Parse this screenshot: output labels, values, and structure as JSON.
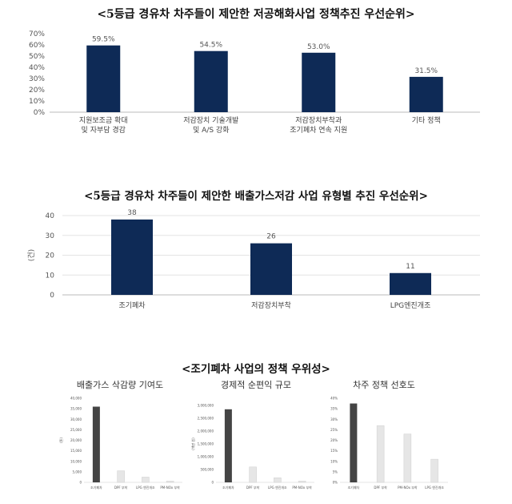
{
  "sections": {
    "top_title": "<5등급 경유차 차주들이 제안한 저공해화사업 정책추진 우선순위>",
    "mid_title": "<5등급 경유차 차주들이 제안한 배출가스저감 사업 유형별 추진 우선순위>",
    "bottom_title": "<조기폐차 사업의 정책 우위성>"
  },
  "colors": {
    "navy": "#0e2a56",
    "dark_gray": "#444444",
    "light_gray": "#e6e6e6"
  },
  "chart_data": [
    {
      "type": "bar",
      "title": "",
      "categories": [
        [
          "지원보조금 확대",
          "및 자부담 경감"
        ],
        [
          "저감장치 기술개발",
          "및 A/S 강화"
        ],
        [
          "저감장치부착과",
          "조기폐차 연속 지원"
        ],
        [
          "기타 정책"
        ]
      ],
      "values": [
        59.5,
        54.5,
        53.0,
        31.5
      ],
      "value_labels": [
        "59.5%",
        "54.5%",
        "53.0%",
        "31.5%"
      ],
      "yticks": [
        "0%",
        "10%",
        "20%",
        "30%",
        "40%",
        "50%",
        "60%",
        "70%"
      ],
      "ylim": [
        0,
        70
      ],
      "grid": false
    },
    {
      "type": "bar",
      "title": "",
      "categories": [
        [
          "조기폐차"
        ],
        [
          "저감장치부착"
        ],
        [
          "LPG엔진개조"
        ]
      ],
      "values": [
        38,
        26,
        11
      ],
      "value_labels": [
        "38",
        "26",
        "11"
      ],
      "yticks": [
        "0",
        "10",
        "20",
        "30",
        "40"
      ],
      "ylabel": "(건)",
      "ylim": [
        0,
        40
      ],
      "grid": true
    },
    {
      "type": "bar",
      "title": "배출가스 삭감량 기여도",
      "categories": [
        "조기폐차",
        "DPF 부착",
        "LPG 엔진개조",
        "PM-NOx 부착"
      ],
      "values": [
        36000,
        5500,
        2500,
        600
      ],
      "yticks": [
        "0",
        "5,000",
        "10,000",
        "15,000",
        "20,000",
        "25,000",
        "30,000",
        "35,000",
        "40,000"
      ],
      "ylabel": "(톤)",
      "ylim": [
        0,
        40000
      ]
    },
    {
      "type": "bar",
      "title": "경제적 순편익 규모",
      "categories": [
        "조기폐차",
        "DPF 부착",
        "LPG 엔진개조",
        "PM-NOx 부착"
      ],
      "values": [
        2850000,
        600000,
        180000,
        50000
      ],
      "yticks": [
        "0",
        "500,000",
        "1,000,000",
        "1,500,000",
        "2,000,000",
        "2,500,000",
        "3,000,000"
      ],
      "ylabel": "(백만 원)",
      "ylim": [
        0,
        3000000
      ]
    },
    {
      "type": "bar",
      "title": "차주 정책 선호도",
      "categories": [
        "조기폐차",
        "DPF 부착",
        "PM-NOx 부착",
        "LPG 엔진개조"
      ],
      "values": [
        37.5,
        27,
        23,
        11
      ],
      "yticks": [
        "0%",
        "5%",
        "10%",
        "15%",
        "20%",
        "25%",
        "30%",
        "35%",
        "40%"
      ],
      "ylim": [
        0,
        40
      ]
    }
  ]
}
